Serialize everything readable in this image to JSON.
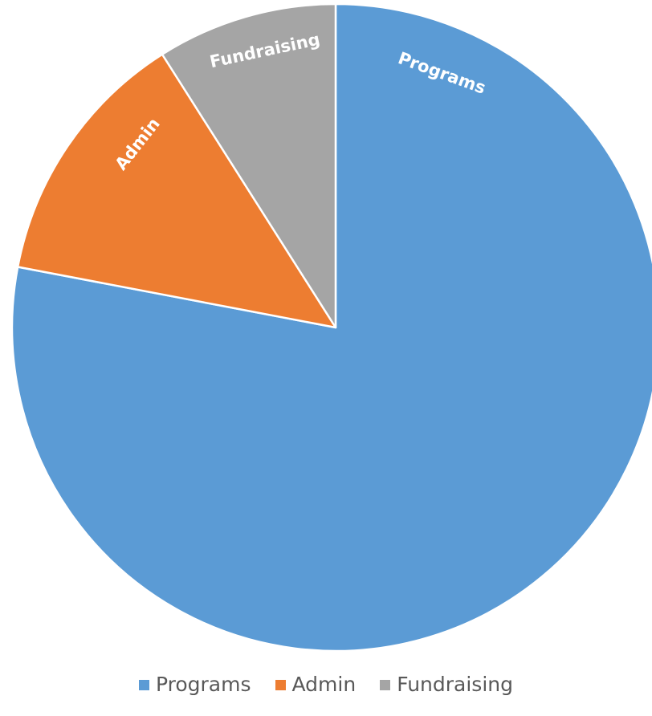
{
  "chart_data": {
    "type": "pie",
    "title": "",
    "slices": [
      {
        "name": "Programs",
        "value": 78,
        "color": "#5B9BD5"
      },
      {
        "name": "Admin",
        "value": 13,
        "color": "#ED7D31"
      },
      {
        "name": "Fundraising",
        "value": 9,
        "color": "#A5A5A5"
      }
    ],
    "start_angle_deg": 0,
    "direction": "clockwise",
    "slice_labels_inside": true,
    "legend_position": "bottom"
  },
  "legend": {
    "items": [
      {
        "label": "Programs",
        "color": "#5B9BD5"
      },
      {
        "label": "Admin",
        "color": "#ED7D31"
      },
      {
        "label": "Fundraising",
        "color": "#A5A5A5"
      }
    ]
  }
}
